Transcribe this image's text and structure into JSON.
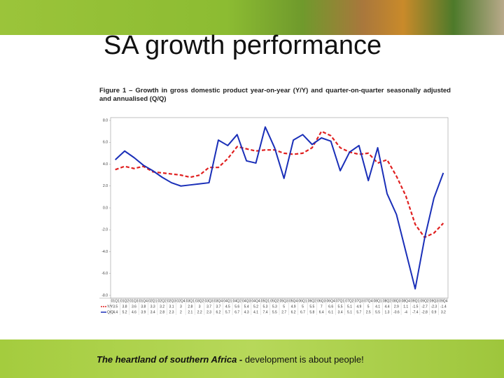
{
  "header": {
    "title": "SA growth performance"
  },
  "figure": {
    "caption": "Figure 1 – Growth in gross domestic product year-on-year (Y/Y) and quarter-on-quarter seasonally adjusted and annualised (Q/Q)"
  },
  "footer": {
    "bold": "The heartland of southern Africa -",
    "text": " development is about people!"
  },
  "chart_data": {
    "type": "line",
    "categories": [
      "01Q1",
      "01Q2",
      "01Q3",
      "01Q4",
      "02Q1",
      "02Q2",
      "02Q3",
      "02Q4",
      "03Q1",
      "03Q2",
      "03Q3",
      "03Q4",
      "04Q1",
      "04Q2",
      "04Q3",
      "04Q4",
      "05Q1",
      "05Q2",
      "05Q3",
      "05Q4",
      "06Q1",
      "06Q2",
      "06Q3",
      "06Q4",
      "07Q1",
      "07Q2",
      "07Q3",
      "07Q4",
      "08Q1",
      "08Q2",
      "08Q3",
      "08Q4",
      "09Q1",
      "09Q2",
      "09Q3",
      "09Q4"
    ],
    "series": [
      {
        "name": "Y/Y",
        "color": "#e02020",
        "dash": true,
        "values": [
          3.5,
          3.8,
          3.6,
          3.8,
          3.3,
          3.2,
          3.1,
          3.0,
          2.8,
          3.0,
          3.7,
          3.7,
          4.5,
          5.6,
          5.4,
          5.2,
          5.3,
          5.3,
          5.0,
          4.9,
          5.0,
          5.5,
          7.0,
          6.6,
          5.5,
          5.1,
          4.9,
          5.0,
          4.1,
          4.4,
          2.9,
          1.1,
          -1.5,
          -2.7,
          -2.3,
          -1.4
        ]
      },
      {
        "name": "Q/Q",
        "color": "#1a2fb8",
        "dash": false,
        "values": [
          4.4,
          5.2,
          4.6,
          3.9,
          3.4,
          2.8,
          2.3,
          2.0,
          2.1,
          2.2,
          2.3,
          6.2,
          5.7,
          6.7,
          4.3,
          4.1,
          7.4,
          5.5,
          2.7,
          6.2,
          6.7,
          5.8,
          6.4,
          6.1,
          3.4,
          5.1,
          5.7,
          2.5,
          5.5,
          1.3,
          -0.6,
          -4.0,
          -7.4,
          -2.8,
          0.9,
          3.2
        ]
      }
    ],
    "ylim": [
      -8,
      8
    ],
    "yticks": [
      {
        "value": -8,
        "label": "-8.0"
      },
      {
        "value": -6,
        "label": "-6.0"
      },
      {
        "value": -4,
        "label": "-4.0"
      },
      {
        "value": -2,
        "label": "-2.0"
      },
      {
        "value": 0,
        "label": "0.0"
      },
      {
        "value": 2,
        "label": "2.0"
      },
      {
        "value": 4,
        "label": "4.0"
      },
      {
        "value": 6,
        "label": "6.0"
      },
      {
        "value": 8,
        "label": "8.0"
      }
    ],
    "grid": false
  }
}
